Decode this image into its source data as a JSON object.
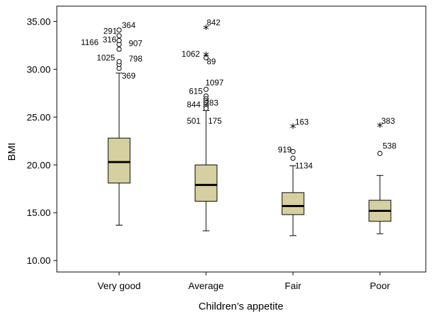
{
  "chart_data": {
    "type": "boxplot",
    "xlabel": "Children’s appetite",
    "ylabel": "BMI",
    "ylim": [
      8.8,
      36.6
    ],
    "yticks": [
      "10.00",
      "15.00",
      "20.00",
      "25.00",
      "30.00",
      "35.00"
    ],
    "categories": [
      "Very good",
      "Average",
      "Fair",
      "Poor"
    ],
    "box_color": "#d6d0a0",
    "boxes": [
      {
        "category": "Very good",
        "whisker_low": 13.7,
        "q1": 18.1,
        "median": 20.3,
        "q3": 22.8,
        "whisker_high": 29.6
      },
      {
        "category": "Average",
        "whisker_low": 13.1,
        "q1": 16.2,
        "median": 17.9,
        "q3": 20.0,
        "whisker_high": 25.7
      },
      {
        "category": "Fair",
        "whisker_low": 12.6,
        "q1": 14.8,
        "median": 15.7,
        "q3": 17.1,
        "whisker_high": 19.9
      },
      {
        "category": "Poor",
        "whisker_low": 12.8,
        "q1": 14.1,
        "median": 15.2,
        "q3": 16.3,
        "whisker_high": 18.9
      }
    ],
    "outliers": [
      {
        "category": "Very good",
        "values": [
          30.1,
          30.5,
          30.8,
          32.1,
          32.6,
          33.0,
          33.5,
          34.1
        ]
      },
      {
        "category": "Average",
        "values": [
          31.2,
          27.9,
          27.2,
          26.9,
          26.7,
          26.5,
          26.3,
          26.1,
          25.9
        ]
      },
      {
        "category": "Fair",
        "values": [
          21.4,
          20.7
        ]
      },
      {
        "category": "Poor",
        "values": [
          21.2
        ]
      }
    ],
    "extremes": [
      {
        "category": "Average",
        "values": [
          34.3,
          31.5
        ]
      },
      {
        "category": "Fair",
        "values": [
          24.0
        ]
      },
      {
        "category": "Poor",
        "values": [
          24.1
        ]
      }
    ],
    "outlier_labels": [
      {
        "category": "Very good",
        "text": "364",
        "y": 34.6
      },
      {
        "category": "Very good",
        "text": "291",
        "y": 34.0
      },
      {
        "category": "Very good",
        "text": "1166",
        "y": 32.8
      },
      {
        "category": "Very good",
        "text": "316",
        "y": 33.1
      },
      {
        "category": "Very good",
        "text": "907",
        "y": 32.7
      },
      {
        "category": "Very good",
        "text": "1025",
        "y": 31.2
      },
      {
        "category": "Very good",
        "text": "798",
        "y": 31.1
      },
      {
        "category": "Very good",
        "text": "369",
        "y": 29.3
      },
      {
        "category": "Average",
        "text": "842",
        "y": 34.9
      },
      {
        "category": "Average",
        "text": "1062",
        "y": 31.6
      },
      {
        "category": "Average",
        "text": "89",
        "y": 30.8
      },
      {
        "category": "Average",
        "text": "1097",
        "y": 28.6
      },
      {
        "category": "Average",
        "text": "615",
        "y": 27.7
      },
      {
        "category": "Average",
        "text": "844",
        "y": 26.3
      },
      {
        "category": "Average",
        "text": "283",
        "y": 26.5
      },
      {
        "category": "Average",
        "text": "501",
        "y": 24.6
      },
      {
        "category": "Average",
        "text": "175",
        "y": 24.6
      },
      {
        "category": "Fair",
        "text": "163",
        "y": 24.5
      },
      {
        "category": "Fair",
        "text": "919",
        "y": 21.6
      },
      {
        "category": "Fair",
        "text": "1134",
        "y": 19.9
      },
      {
        "category": "Poor",
        "text": "383",
        "y": 24.6
      },
      {
        "category": "Poor",
        "text": "538",
        "y": 22.0
      }
    ]
  }
}
